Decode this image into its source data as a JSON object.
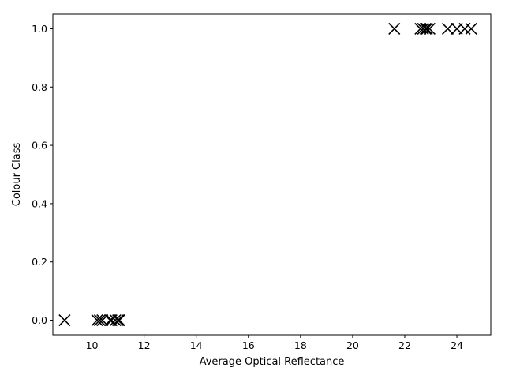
{
  "chart_data": {
    "type": "scatter",
    "title": "",
    "xlabel": "Average Optical Reflectance",
    "ylabel": "Colour Class",
    "xlim": [
      8.5,
      25.3
    ],
    "ylim": [
      -0.05,
      1.05
    ],
    "xticks": [
      "10",
      "12",
      "14",
      "16",
      "18",
      "20",
      "22",
      "24"
    ],
    "yticks": [
      "0.0",
      "0.2",
      "0.4",
      "0.6",
      "0.8",
      "1.0"
    ],
    "grid": false,
    "marker": "x",
    "color": "#000000",
    "series": [
      {
        "x": [
          8.95,
          10.2,
          10.3,
          10.4,
          10.7,
          10.75,
          10.9,
          11.0,
          11.05,
          21.6,
          22.6,
          22.7,
          22.8,
          22.85,
          22.95,
          23.65,
          24.0,
          24.3,
          24.55
        ],
        "y": [
          0,
          0,
          0,
          0,
          0,
          0,
          0,
          0,
          0,
          1,
          1,
          1,
          1,
          1,
          1,
          1,
          1,
          1,
          1
        ]
      }
    ]
  }
}
